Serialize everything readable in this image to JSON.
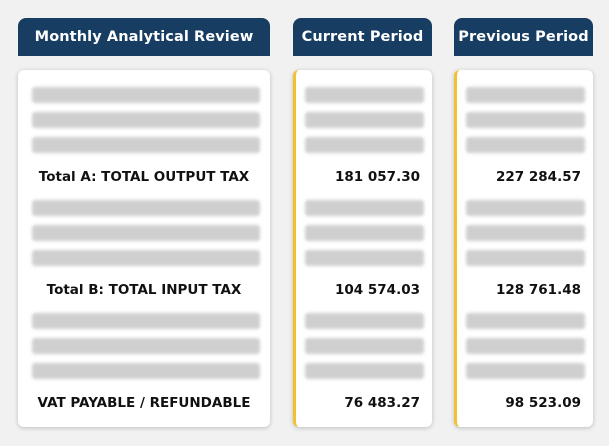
{
  "headers": {
    "review": "Monthly Analytical Review",
    "current": "Current Period",
    "previous": "Previous Period"
  },
  "rows": {
    "total_a": {
      "label": "Total A: TOTAL OUTPUT TAX",
      "current": "181 057.30",
      "previous": "227 284.57"
    },
    "total_b": {
      "label": "Total B: TOTAL INPUT TAX",
      "current": "104 574.03",
      "previous": "128 761.48"
    },
    "vat": {
      "label": "VAT PAYABLE / REFUNDABLE",
      "current": "76 483.27",
      "previous": "98 523.09"
    }
  },
  "colors": {
    "header_bg": "#173d63",
    "accent": "#f2c12e",
    "placeholder": "#cfcfcf"
  }
}
